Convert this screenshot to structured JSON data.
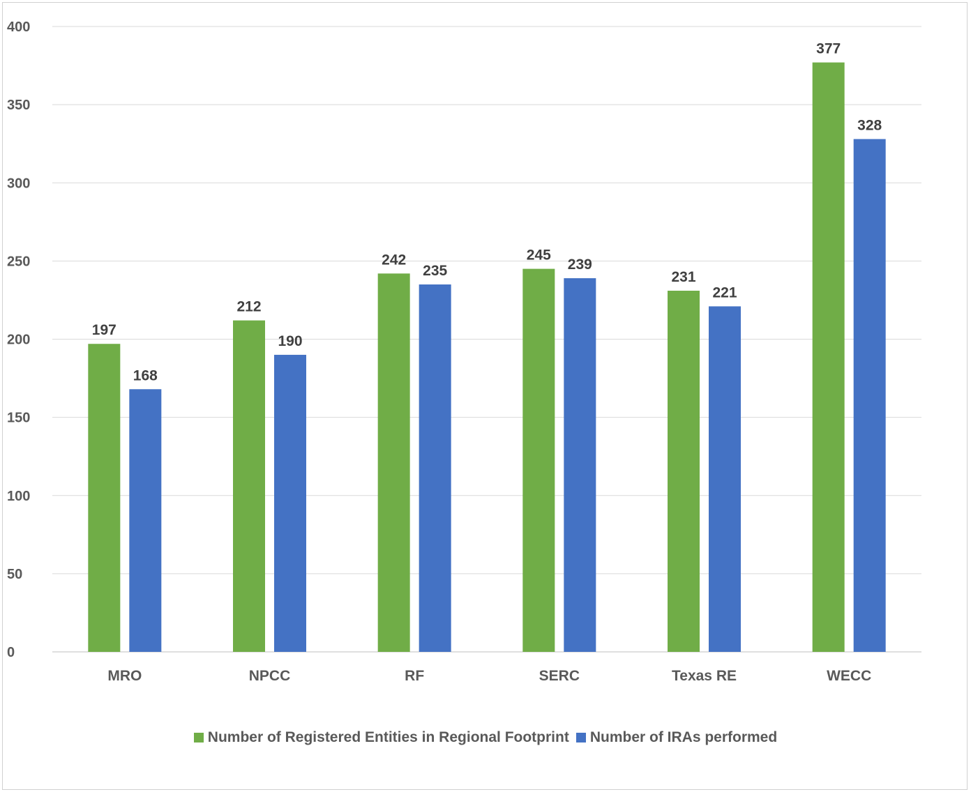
{
  "chart_data": {
    "type": "bar",
    "title": "",
    "xlabel": "",
    "ylabel": "",
    "categories": [
      "MRO",
      "NPCC",
      "RF",
      "SERC",
      "Texas RE",
      "WECC"
    ],
    "series": [
      {
        "name": "Number of Registered Entities in Regional Footprint",
        "color": "#70ad47",
        "values": [
          197,
          212,
          242,
          245,
          231,
          377
        ]
      },
      {
        "name": "Number of IRAs performed",
        "color": "#4472c4",
        "values": [
          168,
          190,
          235,
          239,
          221,
          328
        ]
      }
    ],
    "ylim": [
      0,
      400
    ],
    "yticks": [
      0,
      50,
      100,
      150,
      200,
      250,
      300,
      350,
      400
    ],
    "grid": true,
    "legend_position": "bottom",
    "data_labels": true
  }
}
